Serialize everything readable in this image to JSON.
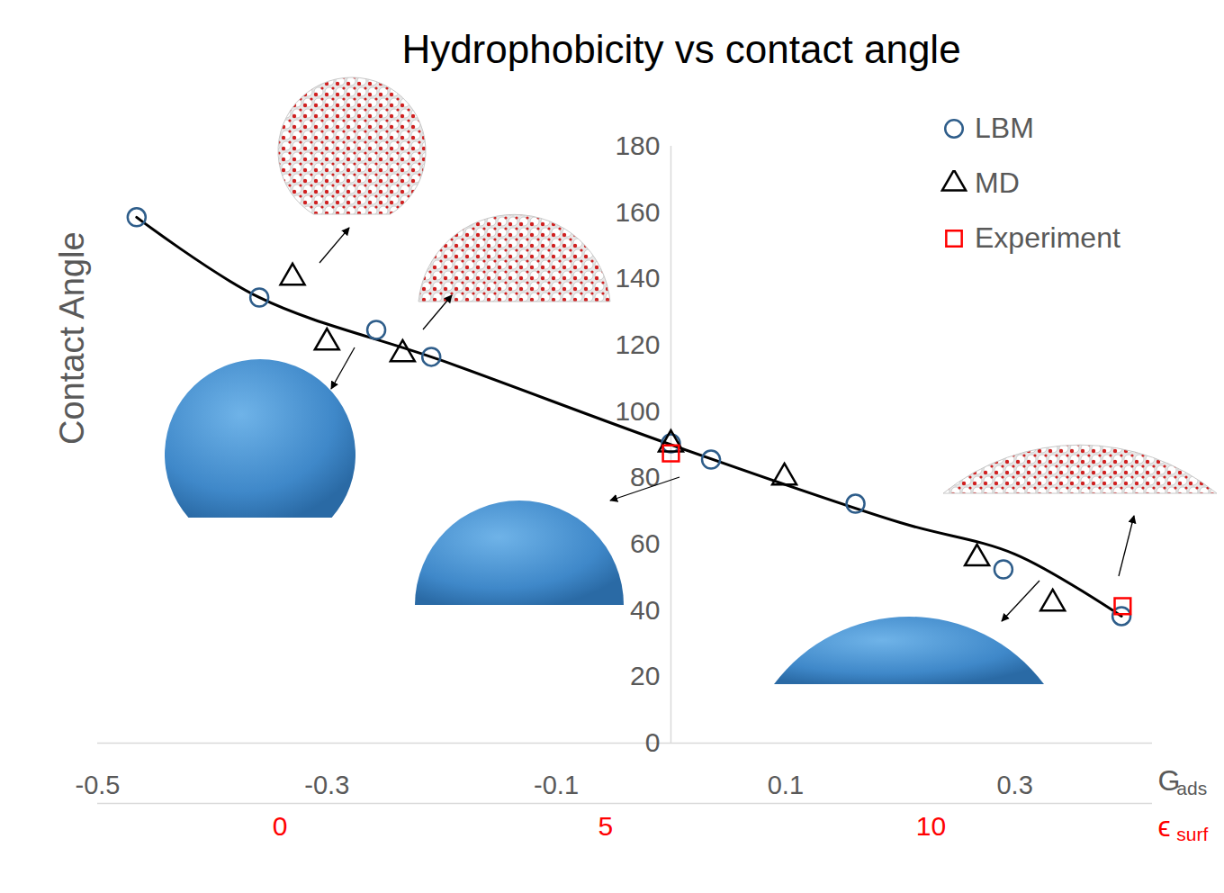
{
  "chart_data": {
    "type": "scatter",
    "title": "Hydrophobicity vs contact angle",
    "xlabel": {
      "text": "G",
      "subscript": "ads"
    },
    "ylabel": "Contact Angle",
    "xlim": [
      -0.5,
      0.42
    ],
    "xticks": [
      -0.5,
      -0.3,
      -0.1,
      0.1,
      0.3
    ],
    "ylim": [
      0,
      180
    ],
    "yticks": [
      0,
      20,
      40,
      60,
      80,
      100,
      120,
      140,
      160,
      180
    ],
    "secondary_x": {
      "label": {
        "text": "ϵ",
        "subscript": "surf"
      },
      "lim": [
        -2.8,
        13.4
      ],
      "ticks": [
        0,
        5,
        10
      ],
      "color": "#ff0000"
    },
    "legend": "top-right",
    "series": [
      {
        "type": "line",
        "color": "#000000",
        "line_style": "solid",
        "x": [
          -0.466,
          -0.359,
          -0.2,
          0.0,
          0.2,
          0.3,
          0.393
        ],
        "values": [
          158.6,
          134.4,
          115.4,
          90.0,
          66.5,
          57.0,
          38.3
        ]
      },
      {
        "name": "LBM",
        "type": "scatter",
        "marker": "circle",
        "color": "#2e5d8a",
        "x": [
          -0.466,
          -0.359,
          -0.257,
          -0.209,
          0.0,
          0.035,
          0.161,
          0.29,
          0.393
        ],
        "values": [
          158.6,
          134.4,
          124.6,
          116.5,
          90.4,
          85.5,
          72.2,
          52.4,
          38.3
        ]
      },
      {
        "name": "MD",
        "type": "scatter",
        "marker": "triangle",
        "color": "#000000",
        "x": [
          -0.33,
          -0.3,
          -0.234,
          0.0,
          0.099,
          0.267,
          0.333
        ],
        "values": [
          140.4,
          120.8,
          117.3,
          90.1,
          80.1,
          55.7,
          42.1
        ]
      },
      {
        "name": "Experiment",
        "type": "scatter",
        "marker": "square",
        "color": "#ff0000",
        "x": [
          0.0,
          0.394
        ],
        "values": [
          87.4,
          41.3
        ]
      }
    ]
  }
}
